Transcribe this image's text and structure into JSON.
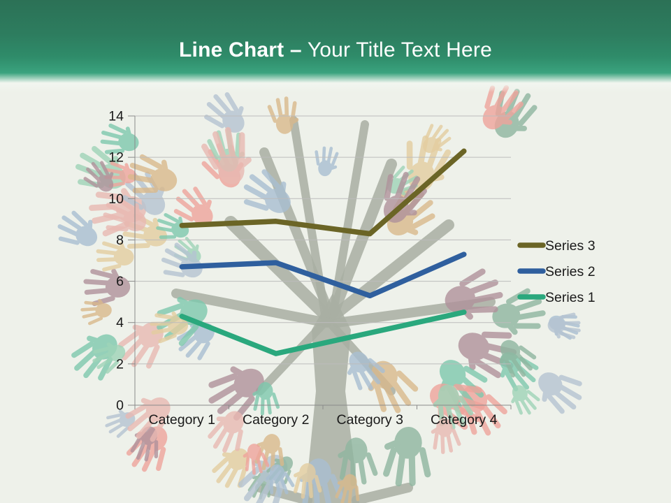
{
  "slide": {
    "title": {
      "product": "Line Chart",
      "dash": "–",
      "placeholder": "Your Title Text Here"
    }
  },
  "theme": {
    "header_green_top": "#2c7156",
    "header_green_bottom": "#3aa37e",
    "slide_background": "#eef1ea",
    "axis_color": "#8a8a8a",
    "gridline_color": "#bcbcbc",
    "label_color": "#1a1a1a",
    "tree_color": "#a9afa3",
    "hand_palette": [
      "#efa49c",
      "#a9bfd2",
      "#9fd4b8",
      "#e4cda0",
      "#b0929b",
      "#7ec9ae",
      "#b5c4d2",
      "#e9b9b2",
      "#8fb6a0",
      "#d9b98c"
    ]
  },
  "chart_data": {
    "type": "line",
    "stacked": true,
    "categories": [
      "Category 1",
      "Category 2",
      "Category 3",
      "Category 4"
    ],
    "series": [
      {
        "name": "Series 1",
        "color": "#2aa87d",
        "values": [
          4.3,
          2.5,
          3.5,
          4.5
        ],
        "plotted_values": [
          4.3,
          2.5,
          3.5,
          4.5
        ]
      },
      {
        "name": "Series 2",
        "color": "#2f5f9e",
        "values": [
          2.4,
          4.4,
          1.8,
          2.8
        ],
        "plotted_values": [
          6.7,
          6.9,
          5.3,
          7.3
        ]
      },
      {
        "name": "Series 3",
        "color": "#6b6526",
        "values": [
          2.0,
          2.0,
          3.0,
          5.0
        ],
        "plotted_values": [
          8.7,
          8.9,
          8.3,
          12.3
        ]
      }
    ],
    "ylim": [
      0,
      14
    ],
    "ytick_step": 2,
    "ytick_labels": [
      "0",
      "2",
      "4",
      "6",
      "8",
      "10",
      "12",
      "14"
    ],
    "legend": [
      "Series 3",
      "Series 2",
      "Series 1"
    ],
    "legend_position": "right",
    "grid": true,
    "title": "",
    "xlabel": "",
    "ylabel": ""
  }
}
